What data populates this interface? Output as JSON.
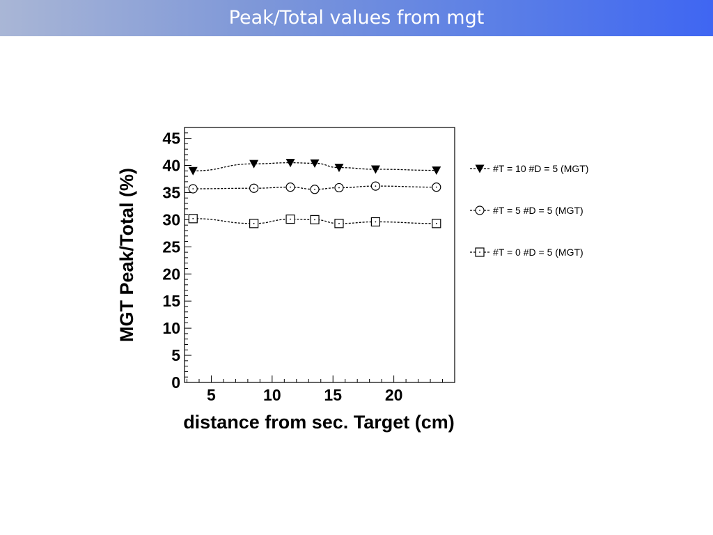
{
  "slide": {
    "title": "Peak/Total values from mgt"
  },
  "colors": {
    "title_bar_start": "#a9b6d6",
    "title_bar_end": "#3f66f2",
    "title_text": "#ffffff",
    "plot": "#000000"
  },
  "chart_data": {
    "type": "scatter",
    "title": "",
    "xlabel": "distance from sec. Target (cm)",
    "ylabel": "MGT Peak/Total (%)",
    "xlim": [
      2.8,
      25
    ],
    "ylim": [
      0,
      47
    ],
    "x_ticks": [
      5,
      10,
      15,
      20
    ],
    "y_ticks": [
      0,
      5,
      10,
      15,
      20,
      25,
      30,
      35,
      40,
      45
    ],
    "grid": false,
    "legend_position": "right",
    "x": [
      3.5,
      8.5,
      11.5,
      13.5,
      15.5,
      18.5,
      23.5
    ],
    "series": [
      {
        "name": "#T = 10  #D = 5 (MGT)",
        "marker": "filled-triangle-down",
        "line": "dashed",
        "values": [
          39.0,
          40.3,
          40.5,
          40.4,
          39.6,
          39.3,
          39.1
        ]
      },
      {
        "name": "#T = 5  #D = 5 (MGT)",
        "marker": "open-circle",
        "line": "dashed",
        "values": [
          35.7,
          35.8,
          36.0,
          35.6,
          35.9,
          36.2,
          36.0
        ]
      },
      {
        "name": "#T = 0  #D = 5 (MGT)",
        "marker": "open-square",
        "line": "dashed",
        "values": [
          30.2,
          29.3,
          30.1,
          30.0,
          29.3,
          29.6,
          29.3
        ]
      }
    ]
  }
}
